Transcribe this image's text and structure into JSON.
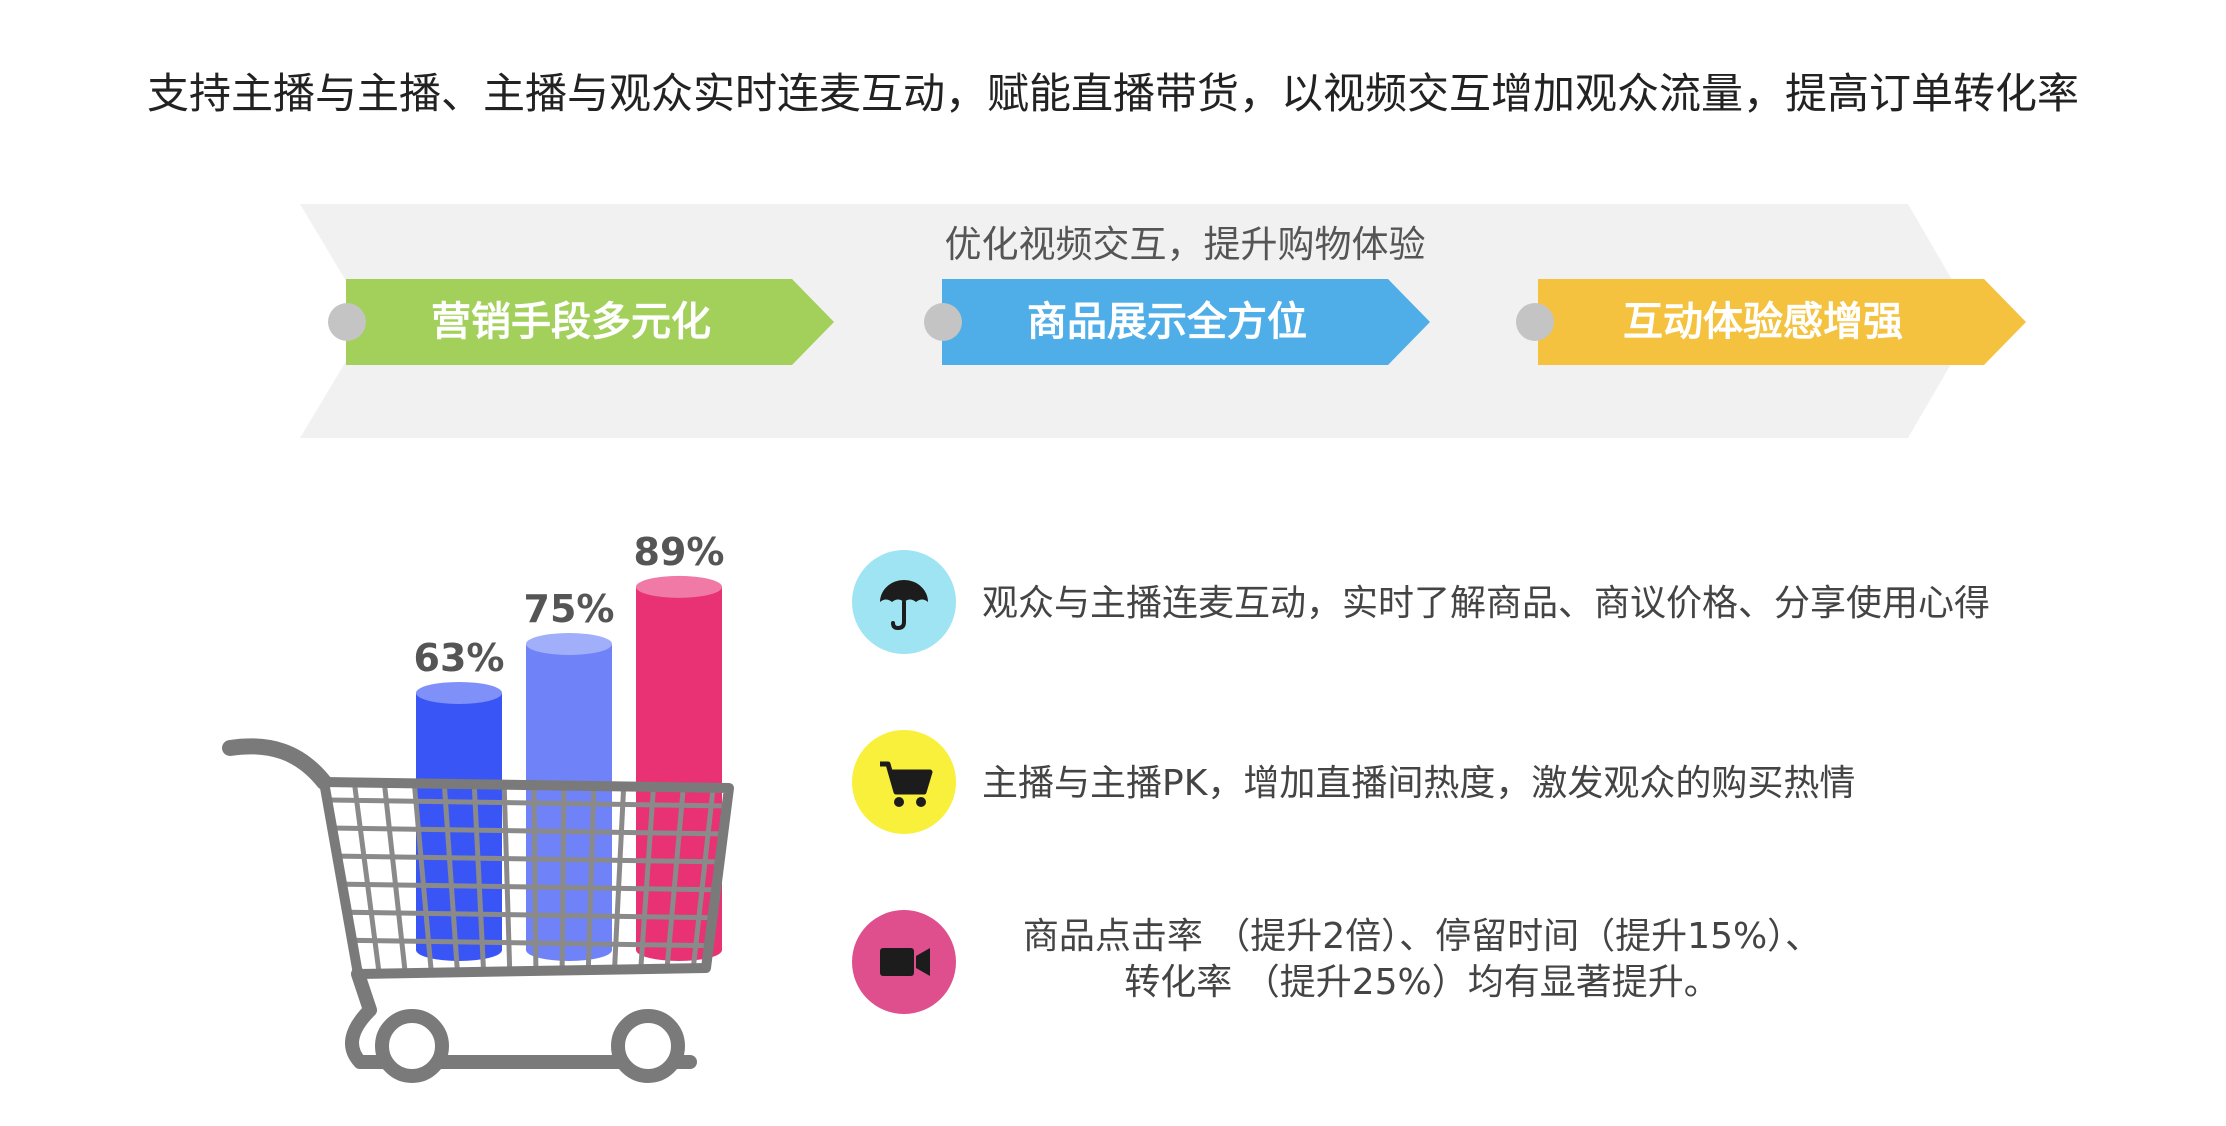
{
  "headline": "支持主播与主播、主播与观众实时连麦互动，赋能直播带货，以视频交互增加观众流量，提高订单转化率",
  "band": {
    "subtitle": "优化视频交互，提升购物体验",
    "stages": [
      {
        "label": "营销手段多元化",
        "color": "#a2d05b"
      },
      {
        "label": "商品展示全方位",
        "color": "#4faee8"
      },
      {
        "label": "互动体验感增强",
        "color": "#f4c23e"
      }
    ]
  },
  "chart_data": {
    "type": "bar",
    "categories": [
      "",
      "",
      ""
    ],
    "values": [
      63,
      75,
      89
    ],
    "data_labels": [
      "63%",
      "75%",
      "89%"
    ],
    "colors": [
      "#3a55f5",
      "#6f82f8",
      "#e83274"
    ],
    "ylim": [
      0,
      100
    ]
  },
  "features": [
    {
      "icon": "umbrella-icon",
      "color": "#9fe4f2",
      "lines": [
        "观众与主播连麦互动，实时了解商品、商议价格、分享使用心得"
      ]
    },
    {
      "icon": "shopping-cart-icon",
      "color": "#f8f03a",
      "lines": [
        "主播与主播PK，增加直播间热度，激发观众的购买热情"
      ]
    },
    {
      "icon": "video-camera-icon",
      "color": "#df4f8e",
      "lines": [
        "商品点击率 （提升2倍）、停留时间（提升15%）、",
        "转化率 （提升25%）均有显著提升。"
      ]
    }
  ]
}
